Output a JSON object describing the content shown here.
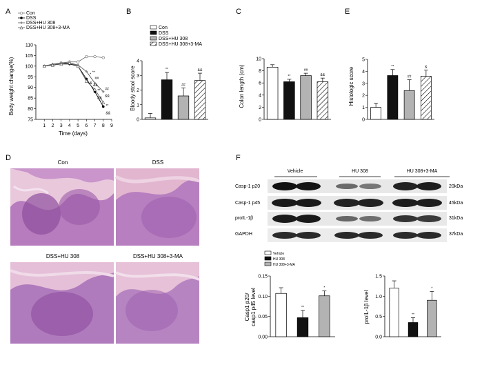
{
  "panel_letters": [
    "A",
    "B",
    "C",
    "E",
    "D",
    "F"
  ],
  "panel_a": {
    "letter": "A",
    "legend": [
      "Con",
      "DSS",
      "DSS+HU 308",
      "DSS+HU 308+3-MA"
    ],
    "ylabel": "Body weight change(%)",
    "xlabel": "Time (days)"
  },
  "panel_b": {
    "letter": "B",
    "ylabel": "Bloody stool score",
    "legend": [
      "Con",
      "DSS",
      "DSS+HU 308",
      "DSS+HU 308+3-MA"
    ]
  },
  "panel_c": {
    "letter": "C",
    "ylabel": "Colon length (cm)"
  },
  "panel_e": {
    "letter": "E",
    "ylabel": "Histologic score"
  },
  "panel_d": {
    "letter": "D",
    "images": [
      "Con",
      "DSS",
      "DSS+HU 308",
      "DSS+HU 308+3-MA"
    ]
  },
  "panel_f": {
    "letter": "F",
    "groups": [
      "Vehicle",
      "HU 308",
      "HU 308+3-MA"
    ],
    "rows": [
      {
        "label": "Casp-1 p20",
        "kda": "20kDa"
      },
      {
        "label": "Casp-1 p45",
        "kda": "45kDa"
      },
      {
        "label": "proIL-1β",
        "kda": "31kDa"
      },
      {
        "label": "GAPDH",
        "kda": "37kDa"
      }
    ],
    "legend": [
      "Vehicle",
      "HU 308",
      "HU 308+3-MA"
    ],
    "ylabel_left": [
      "Casp1 p20/",
      "casp1 p45 level"
    ],
    "ylabel_right": "proIL-1β level"
  },
  "colors": {
    "con": "#ffffff",
    "dss": "#111111",
    "hu": "#b3b3b3",
    "hatch": "#ffffff",
    "tissue": "#c89ac8"
  },
  "chart_data": [
    {
      "type": "line",
      "title": "A",
      "xlabel": "Time (days)",
      "ylabel": "Body weight change(%)",
      "x": [
        1,
        2,
        3,
        4,
        5,
        6,
        7,
        8
      ],
      "xticks": [
        1,
        2,
        3,
        4,
        5,
        6,
        7,
        8,
        9
      ],
      "yticks": [
        75,
        80,
        85,
        90,
        95,
        100,
        105,
        110
      ],
      "ylim": [
        75,
        110
      ],
      "legend_position": "top-left",
      "series": [
        {
          "name": "Con",
          "values": [
            100,
            100.5,
            101.5,
            102,
            102,
            104.5,
            104.5,
            104
          ]
        },
        {
          "name": "DSS",
          "values": [
            100,
            100.5,
            101,
            101,
            100,
            94,
            88,
            81
          ]
        },
        {
          "name": "DSS+HU 308",
          "values": [
            100,
            101,
            101.5,
            101.5,
            100.5,
            97.5,
            92,
            88
          ]
        },
        {
          "name": "DSS+HU 308+3-MA",
          "values": [
            100,
            100.5,
            101,
            101.5,
            100,
            93,
            89,
            83
          ]
        }
      ],
      "annotations": [
        "**",
        "&&",
        "##",
        "&&",
        "**",
        "&&",
        "##",
        "*",
        "&",
        "**",
        "&&"
      ]
    },
    {
      "type": "bar",
      "title": "B",
      "ylabel": "Bloody stool score",
      "categories": [
        "Con",
        "DSS",
        "DSS+HU 308",
        "DSS+HU 308+3-MA"
      ],
      "values": [
        0.1,
        2.7,
        1.6,
        2.65
      ],
      "errors": [
        0.3,
        0.5,
        0.55,
        0.5
      ],
      "yticks": [
        0,
        1,
        2,
        3,
        4
      ],
      "ylim": [
        0,
        4
      ],
      "legend_position": "top-right",
      "annotations": [
        "",
        "**",
        "##",
        "&&"
      ]
    },
    {
      "type": "bar",
      "title": "C",
      "ylabel": "Colon length (cm)",
      "categories": [
        "Con",
        "DSS",
        "DSS+HU 308",
        "DSS+HU 308+3-MA"
      ],
      "values": [
        8.6,
        6.2,
        7.2,
        6.2
      ],
      "errors": [
        0.4,
        0.4,
        0.4,
        0.6
      ],
      "yticks": [
        0,
        2,
        4,
        6,
        8,
        10
      ],
      "ylim": [
        0,
        10
      ],
      "annotations": [
        "",
        "**",
        "##",
        "&&"
      ]
    },
    {
      "type": "bar",
      "title": "E",
      "ylabel": "Histologic score",
      "categories": [
        "Con",
        "DSS",
        "DSS+HU 308",
        "DSS+HU 308+3-MA"
      ],
      "values": [
        1.0,
        3.65,
        2.4,
        3.6
      ],
      "errors": [
        0.35,
        0.5,
        0.9,
        0.5
      ],
      "yticks": [
        0,
        1,
        2,
        3,
        4,
        5
      ],
      "ylim": [
        0,
        5
      ],
      "annotations": [
        "",
        "**",
        "##",
        "&"
      ]
    },
    {
      "type": "bar",
      "title": "F left",
      "ylabel": "Casp1 p20/ casp1 p45 level",
      "categories": [
        "Vehicle",
        "HU 308",
        "HU 308+3-MA"
      ],
      "values": [
        0.107,
        0.047,
        0.101
      ],
      "errors": [
        0.014,
        0.018,
        0.012
      ],
      "yticks": [
        0.0,
        0.05,
        0.1,
        0.15
      ],
      "ylim": [
        0,
        0.15
      ],
      "legend_position": "top-left",
      "annotations": [
        "",
        "**",
        "*"
      ]
    },
    {
      "type": "bar",
      "title": "F right",
      "ylabel": "proIL-1β level",
      "categories": [
        "Vehicle",
        "HU 308",
        "HU 308+3-MA"
      ],
      "values": [
        1.2,
        0.35,
        0.9
      ],
      "errors": [
        0.18,
        0.12,
        0.22
      ],
      "yticks": [
        0.0,
        0.5,
        1.0,
        1.5
      ],
      "ylim": [
        0,
        1.5
      ],
      "annotations": [
        "",
        "**",
        "*"
      ]
    }
  ]
}
